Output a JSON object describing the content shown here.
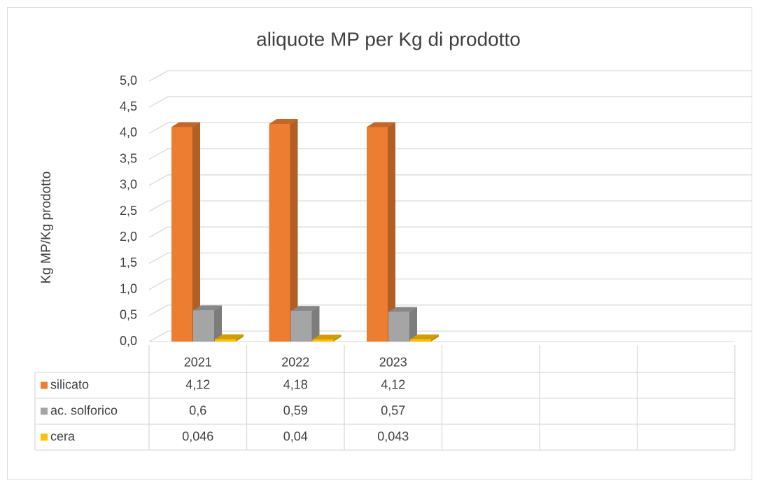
{
  "chart_data": {
    "type": "bar3d",
    "title": "aliquote MP per Kg di prodotto",
    "y_label": "Kg MP/Kg prodotto",
    "categories": [
      "2021",
      "2022",
      "2023",
      null,
      null,
      null
    ],
    "series": [
      {
        "name": "silicato",
        "color": "#ed7d31",
        "values": [
          4.12,
          4.18,
          4.12,
          null,
          null,
          null
        ],
        "value_labels": [
          "4,12",
          "4,18",
          "4,12",
          null,
          null,
          null
        ]
      },
      {
        "name": "ac. solforico",
        "color": "#a5a5a5",
        "values": [
          0.6,
          0.59,
          0.57,
          null,
          null,
          null
        ],
        "value_labels": [
          "0,6",
          "0,59",
          "0,57",
          null,
          null,
          null
        ]
      },
      {
        "name": "cera",
        "color": "#ffc000",
        "values": [
          0.046,
          0.04,
          0.043,
          null,
          null,
          null
        ],
        "value_labels": [
          "0,046",
          "0,04",
          "0,043",
          null,
          null,
          null
        ]
      }
    ],
    "ylim": [
      0,
      5
    ],
    "yticks": [
      {
        "value": 0,
        "label": "0,0"
      },
      {
        "value": 0.5,
        "label": "0,5"
      },
      {
        "value": 1,
        "label": "1,0"
      },
      {
        "value": 1.5,
        "label": "1,5"
      },
      {
        "value": 2,
        "label": "2,0"
      },
      {
        "value": 2.5,
        "label": "2,5"
      },
      {
        "value": 3,
        "label": "3,0"
      },
      {
        "value": 3.5,
        "label": "3,5"
      },
      {
        "value": 4,
        "label": "4,0"
      },
      {
        "value": 4.5,
        "label": "4,5"
      },
      {
        "value": 5,
        "label": "5,0"
      }
    ],
    "grid": true,
    "legend": "table"
  }
}
